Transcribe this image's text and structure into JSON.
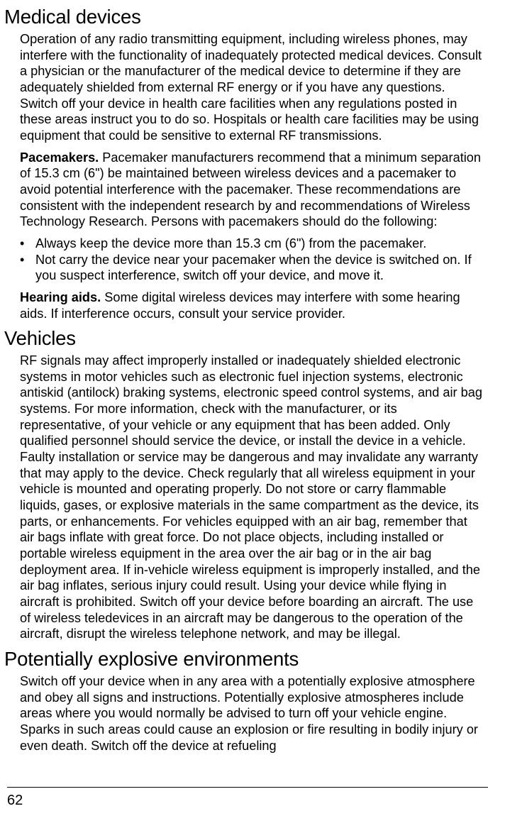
{
  "sections": {
    "medical": {
      "heading": "Medical devices",
      "para1": "Operation of any radio transmitting equipment, including wireless phones, may interfere with the functionality of inadequately protected medical devices. Consult a physician or the manufacturer of the medical device to determine if they are adequately shielded from external RF energy or if you have any questions. Switch off your device in health care facilities when any regulations posted in these areas instruct you to do so. Hospitals or health care facilities may be using equipment that could be sensitive to external RF transmissions.",
      "pacemakers_label": "Pacemakers.",
      "pacemakers_text": " Pacemaker manufacturers recommend that a minimum separation of 15.3 cm (6\") be maintained between wireless devices and a pacemaker to avoid potential interference with the pacemaker. These recommendations are consistent with the independent research by and recommendations of Wireless Technology Research. Persons with pacemakers should do the following:",
      "bullets": [
        "Always keep the device more than 15.3 cm (6\") from the pacemaker.",
        "Not carry the device near your pacemaker when the device is switched on. If you suspect interference, switch off your device, and move it."
      ],
      "hearing_label": "Hearing aids. ",
      "hearing_text": " Some digital wireless devices may interfere with some hearing aids. If interference occurs, consult your service provider."
    },
    "vehicles": {
      "heading": "Vehicles",
      "para1": "RF signals may affect improperly installed or inadequately shielded electronic systems in motor vehicles such as electronic fuel injection systems, electronic antiskid (antilock) braking systems, electronic speed control systems, and air bag systems. For more information, check with the manufacturer, or its representative, of your vehicle or any equipment that has been added. Only qualified personnel should service the device, or install the device in a vehicle. Faulty installation or service may be dangerous and may invalidate any warranty that may apply to the device. Check regularly that all wireless equipment in your vehicle is mounted and operating properly. Do not store or carry flammable liquids, gases, or explosive materials in the same compartment as the device, its parts, or enhancements. For vehicles equipped with an air bag, remember that air bags inflate with great force. Do not place objects, including installed or portable wireless equipment in the area over the air bag or in the air bag deployment area. If in-vehicle wireless equipment is improperly installed, and the air bag inflates, serious injury could result. Using your device while flying in aircraft is prohibited. Switch off your device before boarding an aircraft. The use of wireless teledevices in an aircraft may be dangerous to the operation of the aircraft, disrupt the wireless telephone network, and may be illegal."
    },
    "explosive": {
      "heading": "Potentially explosive environments",
      "para1": "Switch off your device when in any area with a potentially explosive atmosphere and obey all signs and instructions. Potentially explosive atmospheres include areas where you would normally be advised to turn off your vehicle engine. Sparks in such areas could cause an explosion or fire resulting in bodily injury or even death. Switch off the device at refueling"
    }
  },
  "page_number": "62"
}
